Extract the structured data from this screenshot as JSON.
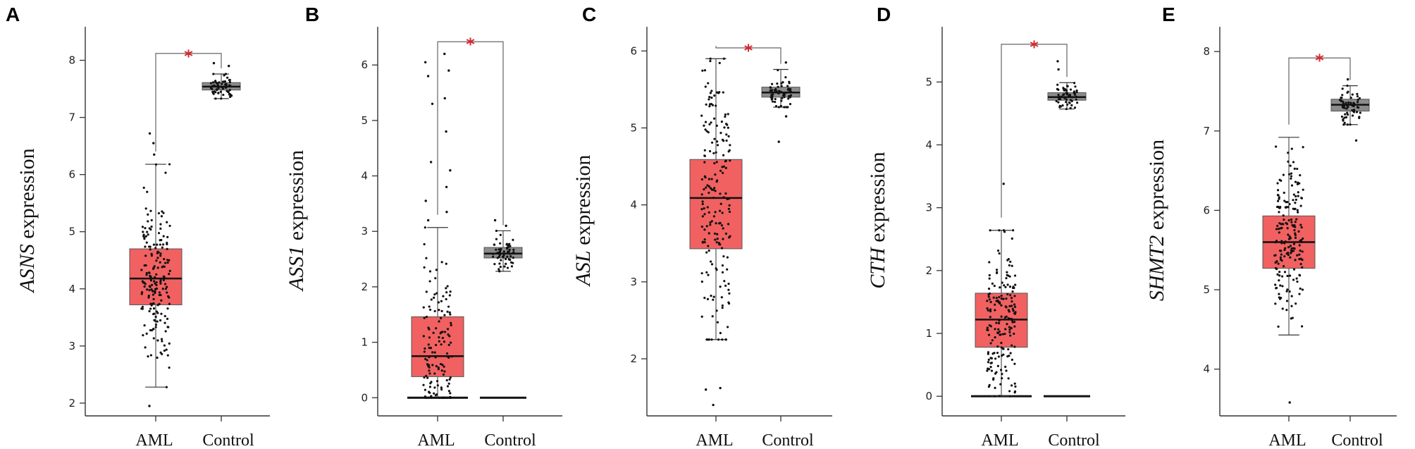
{
  "colors": {
    "aml_box": "#f16161",
    "control_box": "#8c8c8c",
    "star": "#d6262d",
    "points": "#111111",
    "axis": "#333333"
  },
  "chart_data": [
    {
      "type": "box",
      "panel": "A",
      "gene": "ASNS",
      "ylabel_suffix": " expression",
      "categories": [
        "AML",
        "Control"
      ],
      "ylim": [
        1.9,
        8.5
      ],
      "yticks": [
        2,
        3,
        4,
        5,
        6,
        7,
        8
      ],
      "boxes": [
        {
          "name": "AML",
          "q1": 3.72,
          "median": 4.18,
          "q3": 4.7,
          "whisker_low": 2.28,
          "whisker_high": 6.18,
          "n": 190,
          "outliers": [
            6.35,
            6.55,
            6.72,
            1.95
          ],
          "zero_line": false
        },
        {
          "name": "Control",
          "q1": 7.48,
          "median": 7.54,
          "q3": 7.61,
          "whisker_low": 7.33,
          "whisker_high": 7.76,
          "n": 60,
          "outliers": [
            7.9,
            7.95
          ],
          "zero_line": false
        }
      ],
      "significance": {
        "label": "*",
        "y": 8.12
      }
    },
    {
      "type": "box",
      "panel": "B",
      "gene": "ASS1",
      "ylabel_suffix": " expression",
      "categories": [
        "AML",
        "Control"
      ],
      "ylim": [
        -0.2,
        6.6
      ],
      "yticks": [
        0,
        1,
        2,
        3,
        4,
        5,
        6
      ],
      "boxes": [
        {
          "name": "AML",
          "q1": 0.38,
          "median": 0.75,
          "q3": 1.46,
          "whisker_low": 0.0,
          "whisker_high": 3.07,
          "n": 150,
          "outliers": [
            3.2,
            3.35,
            3.55,
            3.8,
            4.1,
            4.25,
            4.8,
            5.3,
            5.4,
            5.8,
            6.05,
            6.2,
            5.9
          ],
          "zero_line": true
        },
        {
          "name": "Control",
          "q1": 2.52,
          "median": 2.6,
          "q3": 2.71,
          "whisker_low": 2.28,
          "whisker_high": 3.01,
          "n": 60,
          "outliers": [
            3.1,
            3.2
          ],
          "zero_line": true
        }
      ],
      "significance": {
        "label": "*",
        "y": 6.42
      }
    },
    {
      "type": "box",
      "panel": "C",
      "gene": "ASL",
      "ylabel_suffix": " expression",
      "categories": [
        "AML",
        "Control"
      ],
      "ylim": [
        1.35,
        6.25
      ],
      "yticks": [
        2,
        3,
        4,
        5,
        6
      ],
      "boxes": [
        {
          "name": "AML",
          "q1": 3.43,
          "median": 4.09,
          "q3": 4.59,
          "whisker_low": 2.25,
          "whisker_high": 5.9,
          "n": 190,
          "outliers": [
            1.6,
            1.62,
            1.4
          ],
          "zero_line": false
        },
        {
          "name": "Control",
          "q1": 5.4,
          "median": 5.46,
          "q3": 5.53,
          "whisker_low": 5.27,
          "whisker_high": 5.76,
          "n": 60,
          "outliers": [
            4.82,
            5.15,
            5.85
          ],
          "zero_line": false
        }
      ],
      "significance": {
        "label": "*",
        "y": 6.04
      }
    },
    {
      "type": "box",
      "panel": "D",
      "gene": "CTH",
      "ylabel_suffix": " expression",
      "categories": [
        "AML",
        "Control"
      ],
      "ylim": [
        -0.2,
        5.8
      ],
      "yticks": [
        0,
        1,
        2,
        3,
        4,
        5
      ],
      "boxes": [
        {
          "name": "AML",
          "q1": 0.78,
          "median": 1.22,
          "q3": 1.64,
          "whisker_low": 0.0,
          "whisker_high": 2.64,
          "n": 180,
          "outliers": [
            3.38
          ],
          "zero_line": true
        },
        {
          "name": "Control",
          "q1": 4.71,
          "median": 4.76,
          "q3": 4.83,
          "whisker_low": 4.57,
          "whisker_high": 4.99,
          "n": 60,
          "outliers": [
            5.2,
            5.33
          ],
          "zero_line": true
        }
      ],
      "significance": {
        "label": "*",
        "y": 5.6
      }
    },
    {
      "type": "box",
      "panel": "E",
      "gene": "SHMT2",
      "ylabel_suffix": " expression",
      "categories": [
        "AML",
        "Control"
      ],
      "ylim": [
        3.5,
        8.25
      ],
      "yticks": [
        4,
        5,
        6,
        7,
        8
      ],
      "boxes": [
        {
          "name": "AML",
          "q1": 5.27,
          "median": 5.6,
          "q3": 5.93,
          "whisker_low": 4.43,
          "whisker_high": 6.92,
          "n": 190,
          "outliers": [
            3.58
          ],
          "zero_line": false
        },
        {
          "name": "Control",
          "q1": 7.25,
          "median": 7.33,
          "q3": 7.4,
          "whisker_low": 7.08,
          "whisker_high": 7.57,
          "n": 60,
          "outliers": [
            6.88,
            7.65
          ],
          "zero_line": false
        }
      ],
      "significance": {
        "label": "*",
        "y": 7.92
      }
    }
  ]
}
